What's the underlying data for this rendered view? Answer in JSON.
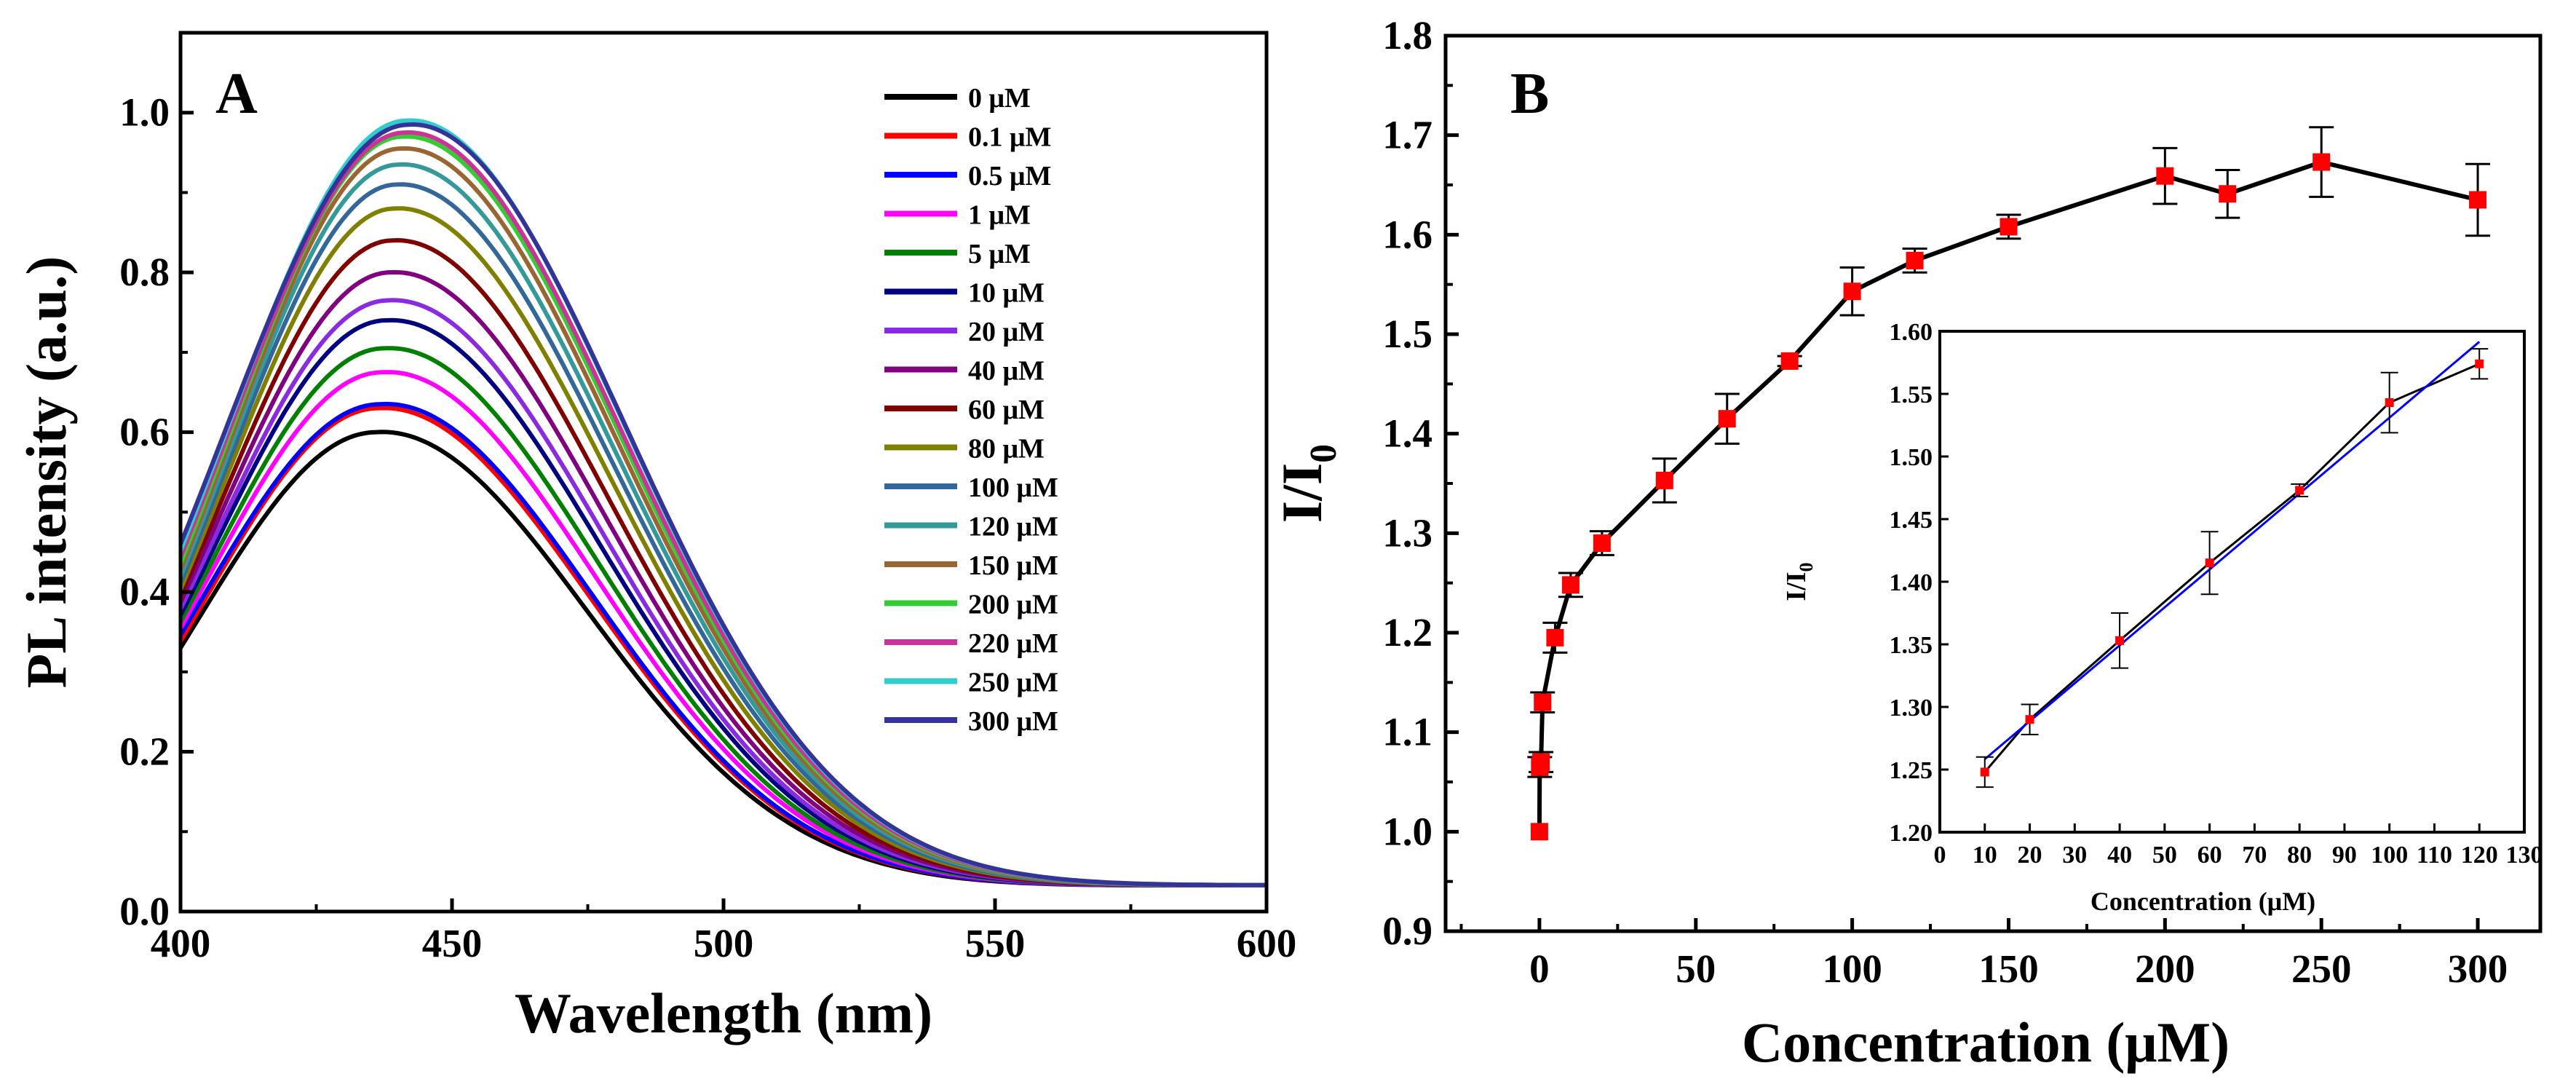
{
  "chart_data": [
    {
      "panel": "A",
      "type": "line",
      "xlabel": "Wavelength (nm)",
      "ylabel": "PL intensity (a.u.)",
      "xlim": [
        400,
        600
      ],
      "ylim": [
        0.0,
        1.1
      ],
      "xticks": [
        "400",
        "450",
        "500",
        "550",
        "600"
      ],
      "yticks": [
        "0.0",
        "0.2",
        "0.4",
        "0.6",
        "0.8",
        "1.0"
      ],
      "legend_position": "top-right",
      "series": [
        {
          "name": "0 μM",
          "peak": 0.6,
          "color": "#000000"
        },
        {
          "name": "0.1 μM",
          "peak": 0.63,
          "color": "#ff0000"
        },
        {
          "name": "0.5 μM",
          "peak": 0.635,
          "color": "#0000ff"
        },
        {
          "name": "1 μM",
          "peak": 0.675,
          "color": "#ff00ff"
        },
        {
          "name": "5 μM",
          "peak": 0.705,
          "color": "#008000"
        },
        {
          "name": "10 μM",
          "peak": 0.74,
          "color": "#000080"
        },
        {
          "name": "20 μM",
          "peak": 0.765,
          "color": "#8a2be2"
        },
        {
          "name": "40 μM",
          "peak": 0.8,
          "color": "#800080"
        },
        {
          "name": "60 μM",
          "peak": 0.84,
          "color": "#800000"
        },
        {
          "name": "80 μM",
          "peak": 0.88,
          "color": "#808000"
        },
        {
          "name": "100 μM",
          "peak": 0.91,
          "color": "#336699"
        },
        {
          "name": "120 μM",
          "peak": 0.935,
          "color": "#339999"
        },
        {
          "name": "150 μM",
          "peak": 0.955,
          "color": "#996633"
        },
        {
          "name": "200 μM",
          "peak": 0.97,
          "color": "#33cc33"
        },
        {
          "name": "220 μM",
          "peak": 0.975,
          "color": "#cc3399"
        },
        {
          "name": "250 μM",
          "peak": 0.99,
          "color": "#33cccc"
        },
        {
          "name": "300 μM",
          "peak": 0.985,
          "color": "#333399"
        }
      ]
    },
    {
      "panel": "B",
      "type": "line",
      "xlabel": "Concentration (μM)",
      "ylabel_main": "I/I",
      "ylabel_sub": "0",
      "xlim": [
        -30,
        320
      ],
      "ylim": [
        0.9,
        1.8
      ],
      "xticks": [
        "0",
        "50",
        "100",
        "150",
        "200",
        "250",
        "300"
      ],
      "yticks": [
        "0.9",
        "1.0",
        "1.1",
        "1.2",
        "1.3",
        "1.4",
        "1.5",
        "1.6",
        "1.7",
        "1.8"
      ],
      "x": [
        0,
        0.1,
        0.5,
        1,
        5,
        10,
        20,
        40,
        60,
        80,
        100,
        120,
        150,
        200,
        220,
        250,
        300
      ],
      "y": [
        1.0,
        1.065,
        1.07,
        1.13,
        1.195,
        1.248,
        1.29,
        1.353,
        1.415,
        1.473,
        1.543,
        1.574,
        1.608,
        1.659,
        1.641,
        1.673,
        1.635
      ],
      "err": [
        0.0,
        0.01,
        0.01,
        0.01,
        0.015,
        0.012,
        0.012,
        0.022,
        0.025,
        0.005,
        0.024,
        0.012,
        0.012,
        0.028,
        0.024,
        0.035,
        0.036
      ],
      "marker_color": "#ff0000",
      "line_color": "#000000"
    },
    {
      "panel": "B-inset",
      "type": "scatter",
      "xlabel": "Concentration (μM)",
      "ylabel_main": "I/I",
      "ylabel_sub": "0",
      "xlim": [
        0,
        130
      ],
      "ylim": [
        1.2,
        1.6
      ],
      "xticks": [
        "0",
        "10",
        "20",
        "30",
        "40",
        "50",
        "60",
        "70",
        "80",
        "90",
        "100",
        "110",
        "120",
        "130"
      ],
      "yticks": [
        "1.20",
        "1.25",
        "1.30",
        "1.35",
        "1.40",
        "1.45",
        "1.50",
        "1.55",
        "1.60"
      ],
      "x": [
        10,
        20,
        40,
        60,
        80,
        100,
        120
      ],
      "y": [
        1.248,
        1.29,
        1.353,
        1.415,
        1.473,
        1.543,
        1.574
      ],
      "err": [
        0.012,
        0.012,
        0.022,
        0.025,
        0.005,
        0.024,
        0.012
      ],
      "fit": {
        "slope": 0.00303,
        "intercept": 1.228,
        "color": "#0000ff"
      },
      "marker_color": "#ff0000"
    }
  ],
  "panel_labels": {
    "a": "A",
    "b": "B"
  }
}
